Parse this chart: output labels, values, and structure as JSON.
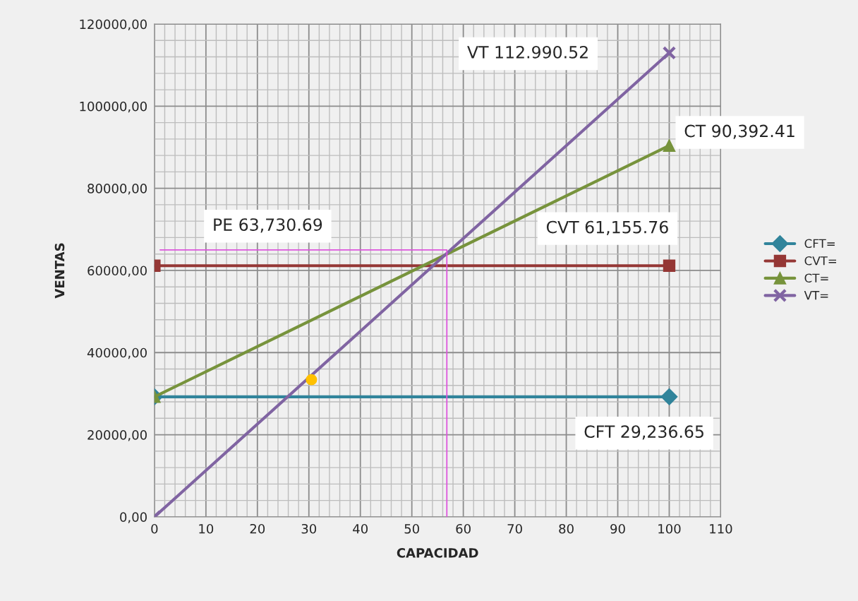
{
  "chart_data": {
    "type": "line",
    "xlabel": "CAPACIDAD",
    "ylabel": "VENTAS",
    "xlim": [
      0,
      110
    ],
    "xticks": [
      0,
      10,
      20,
      30,
      40,
      50,
      60,
      70,
      80,
      90,
      100,
      110
    ],
    "ylim": [
      0,
      120000
    ],
    "yticks": [
      {
        "value": 0,
        "label": "0,00"
      },
      {
        "value": 20000,
        "label": "20000,00"
      },
      {
        "value": 40000,
        "label": "40000,00"
      },
      {
        "value": 60000,
        "label": "60000,00"
      },
      {
        "value": 80000,
        "label": "80000,00"
      },
      {
        "value": 100000,
        "label": "100000,00"
      },
      {
        "value": 120000,
        "label": "120000,00"
      }
    ],
    "grid": true,
    "legend": "right",
    "series": [
      {
        "name": "CFT=",
        "color": "#31849b",
        "marker": "diamond",
        "x": [
          0,
          100
        ],
        "values": [
          29236.65,
          29236.65
        ]
      },
      {
        "name": "CVT=",
        "color": "#953735",
        "marker": "square",
        "x": [
          0,
          100
        ],
        "values": [
          61155.76,
          61155.76
        ]
      },
      {
        "name": "CT=",
        "color": "#77933c",
        "marker": "triangle",
        "x": [
          0,
          100
        ],
        "values": [
          29236.65,
          90392.41
        ]
      },
      {
        "name": "VT=",
        "color": "#8064a2",
        "marker": "cross",
        "x": [
          0,
          100
        ],
        "values": [
          0,
          112990.52
        ]
      },
      {
        "color": "#dd55dd",
        "marker": "none",
        "x": [
          1.1,
          56.8,
          56.8
        ],
        "values": [
          65000,
          65000,
          0
        ]
      },
      {
        "type": "scatter",
        "color": "#ffc000",
        "marker": "circle",
        "x": [
          30.5
        ],
        "values": [
          33400
        ]
      }
    ],
    "annotations": [
      "VT 112.990.52",
      "CT 90,392.41",
      "PE 63,730.69",
      "CVT 61,155.76",
      "CFT 29,236.65"
    ]
  }
}
